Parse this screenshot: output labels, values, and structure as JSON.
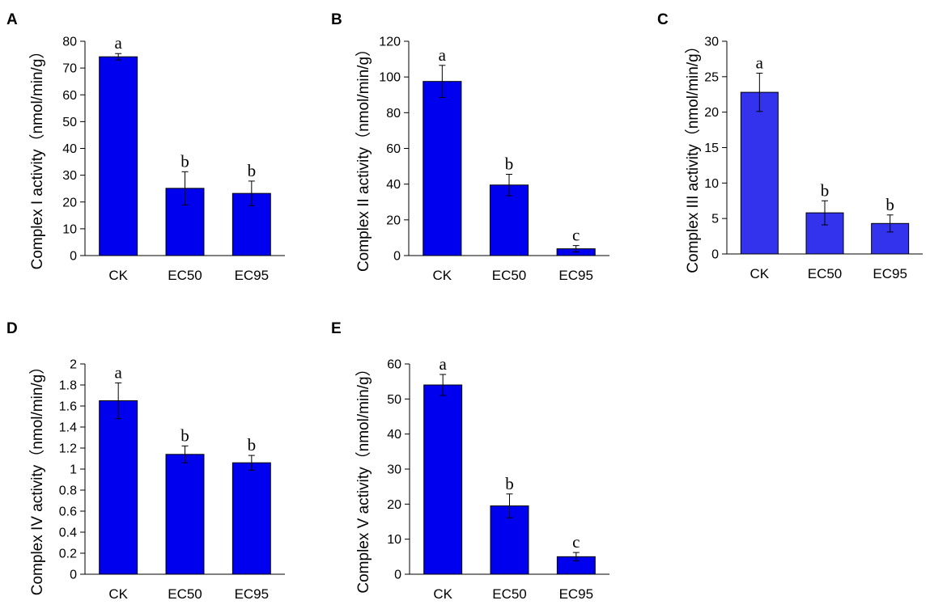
{
  "chart_data": [
    {
      "panel": "A",
      "type": "bar",
      "ylabel": "Complex I activity（nmol/min/g）",
      "categories": [
        "CK",
        "EC50",
        "EC95"
      ],
      "values": [
        74.2,
        25.1,
        23.2
      ],
      "errors": [
        1.2,
        6.2,
        4.6
      ],
      "significance": [
        "a",
        "b",
        "b"
      ],
      "ylim": [
        0,
        80
      ],
      "yticks": [
        0,
        10,
        20,
        30,
        40,
        50,
        60,
        70,
        80
      ],
      "bar_color": "#0000ee"
    },
    {
      "panel": "B",
      "type": "bar",
      "ylabel": "Complex II activity（nmol/min/g）",
      "categories": [
        "CK",
        "EC50",
        "EC95"
      ],
      "values": [
        97.5,
        39.5,
        3.8
      ],
      "errors": [
        9.0,
        6.0,
        1.8
      ],
      "significance": [
        "a",
        "b",
        "c"
      ],
      "ylim": [
        0,
        120
      ],
      "yticks": [
        0,
        20,
        40,
        60,
        80,
        100,
        120
      ],
      "bar_color": "#0000ee"
    },
    {
      "panel": "C",
      "type": "bar",
      "ylabel": "Complex III activity（nmol/min/g）",
      "categories": [
        "CK",
        "EC50",
        "EC95"
      ],
      "values": [
        22.8,
        5.8,
        4.3
      ],
      "errors": [
        2.7,
        1.7,
        1.2
      ],
      "significance": [
        "a",
        "b",
        "b"
      ],
      "ylim": [
        0,
        30
      ],
      "yticks": [
        0,
        5,
        10,
        15,
        20,
        25,
        30
      ],
      "bar_color": "#3333ee"
    },
    {
      "panel": "D",
      "type": "bar",
      "ylabel": "Complex IV activity（nmol/min/g）",
      "categories": [
        "CK",
        "EC50",
        "EC95"
      ],
      "values": [
        1.65,
        1.14,
        1.06
      ],
      "errors": [
        0.17,
        0.08,
        0.07
      ],
      "significance": [
        "a",
        "b",
        "b"
      ],
      "ylim": [
        0,
        2
      ],
      "yticks": [
        "0",
        "0.2",
        "0.4",
        "0.6",
        "0.8",
        "1",
        "1.2",
        "1.4",
        "1.6",
        "1.8",
        "2"
      ],
      "bar_color": "#0000ee"
    },
    {
      "panel": "E",
      "type": "bar",
      "ylabel": "Complex V activity（nmol/min/g）",
      "categories": [
        "CK",
        "EC50",
        "EC95"
      ],
      "values": [
        54.0,
        19.5,
        5.0
      ],
      "errors": [
        3.0,
        3.4,
        1.2
      ],
      "significance": [
        "a",
        "b",
        "c"
      ],
      "ylim": [
        0,
        60
      ],
      "yticks": [
        0,
        10,
        20,
        30,
        40,
        50,
        60
      ],
      "bar_color": "#0000ee"
    }
  ]
}
